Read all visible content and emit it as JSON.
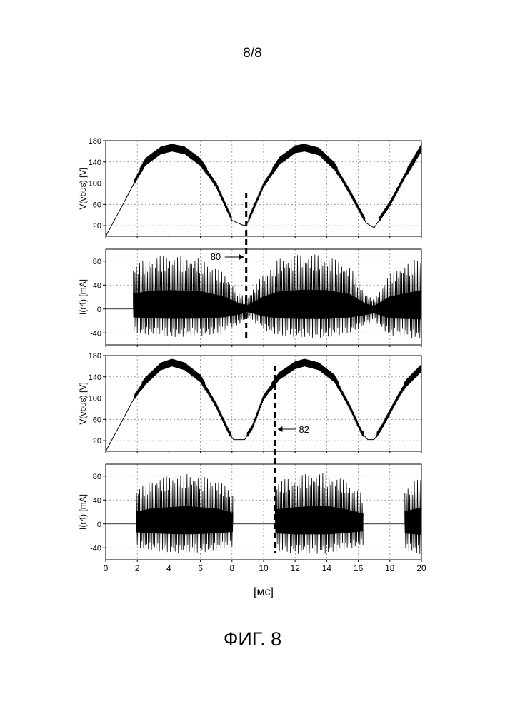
{
  "page_number": "8/8",
  "figure_label": "ФИГ. 8",
  "colors": {
    "ink": "#000000",
    "grid": "#8a8a8a",
    "background": "#ffffff"
  },
  "chart_data": [
    {
      "type": "line",
      "ylabel": "V(vbus) [V]",
      "xlim": [
        0,
        20
      ],
      "ylim": [
        0,
        180
      ],
      "yticks": [
        20,
        60,
        100,
        140,
        180
      ],
      "grid": true,
      "signal": "rectified_ac_continuous",
      "envelope_x": [
        0,
        1,
        1.8,
        2.5,
        3.5,
        4.2,
        5,
        6,
        7,
        8,
        8.6,
        8.9,
        10,
        11,
        12,
        12.6,
        13.5,
        14.5,
        15.5,
        16.5,
        17,
        18,
        19,
        20
      ],
      "envelope_y": [
        0,
        55,
        100,
        138,
        160,
        165,
        160,
        138,
        95,
        30,
        22,
        20,
        95,
        140,
        162,
        165,
        158,
        130,
        80,
        25,
        16,
        60,
        115,
        165
      ],
      "annotations": [
        {
          "label": "80",
          "x": 8.9
        }
      ]
    },
    {
      "type": "line",
      "ylabel": "I(r4) [mA]",
      "xlim": [
        0,
        20
      ],
      "ylim": [
        -60,
        100
      ],
      "yticks": [
        -40,
        0,
        40,
        80
      ],
      "grid": true,
      "signal": "oscillating_current_continuous",
      "on_intervals": [
        [
          1.75,
          20
        ]
      ],
      "envelope_x": [
        1.8,
        3,
        4.2,
        6,
        7.5,
        8.5,
        9,
        10,
        11,
        12.5,
        14,
        15.5,
        16.5,
        17,
        18,
        20
      ],
      "envelope_max": [
        75,
        88,
        90,
        85,
        60,
        25,
        20,
        60,
        85,
        92,
        90,
        70,
        25,
        15,
        60,
        90
      ],
      "envelope_min": [
        -40,
        -45,
        -47,
        -46,
        -40,
        -25,
        -15,
        -35,
        -45,
        -48,
        -48,
        -40,
        -28,
        -20,
        -45,
        -50
      ]
    },
    {
      "type": "line",
      "ylabel": "V(vbus) [V]",
      "xlim": [
        0,
        20
      ],
      "ylim": [
        0,
        180
      ],
      "yticks": [
        20,
        60,
        100,
        140,
        180
      ],
      "grid": true,
      "signal": "rectified_ac_interrupted",
      "envelope_x": [
        0,
        1,
        1.8,
        2.5,
        3.5,
        4.2,
        5,
        6,
        7,
        7.8,
        8.1,
        8.3,
        8.8,
        9.3,
        10,
        11,
        12,
        12.6,
        13.5,
        14.5,
        15.5,
        16.2,
        16.6,
        17,
        17.5,
        18.5,
        19,
        20
      ],
      "envelope_y": [
        0,
        55,
        100,
        130,
        158,
        165,
        158,
        135,
        85,
        35,
        22,
        22,
        22,
        45,
        100,
        140,
        160,
        165,
        158,
        135,
        80,
        35,
        22,
        22,
        45,
        100,
        125,
        155
      ],
      "annotations": [
        {
          "label": "82",
          "x": 10.7
        }
      ]
    },
    {
      "type": "line",
      "ylabel": "I(r4) [mA]",
      "xlim": [
        0,
        20
      ],
      "ylim": [
        -60,
        100
      ],
      "yticks": [
        -40,
        0,
        40,
        80
      ],
      "grid": true,
      "signal": "oscillating_current_bursts",
      "on_intervals": [
        [
          1.95,
          8.05
        ],
        [
          10.75,
          16.3
        ],
        [
          18.95,
          20
        ]
      ],
      "envelope_x": [
        1.95,
        3,
        4,
        5,
        6,
        7,
        8,
        10.75,
        12,
        13,
        14,
        15,
        16.3,
        18.95,
        20
      ],
      "envelope_max": [
        60,
        75,
        80,
        85,
        80,
        75,
        55,
        70,
        80,
        85,
        85,
        75,
        50,
        60,
        80
      ],
      "envelope_min": [
        -40,
        -45,
        -48,
        -50,
        -48,
        -45,
        -38,
        -45,
        -50,
        -50,
        -50,
        -45,
        -35,
        -45,
        -52
      ]
    }
  ],
  "x_axis": {
    "ticks": [
      0,
      2,
      4,
      6,
      8,
      10,
      12,
      14,
      16,
      18,
      20
    ],
    "label": "[мс]"
  }
}
